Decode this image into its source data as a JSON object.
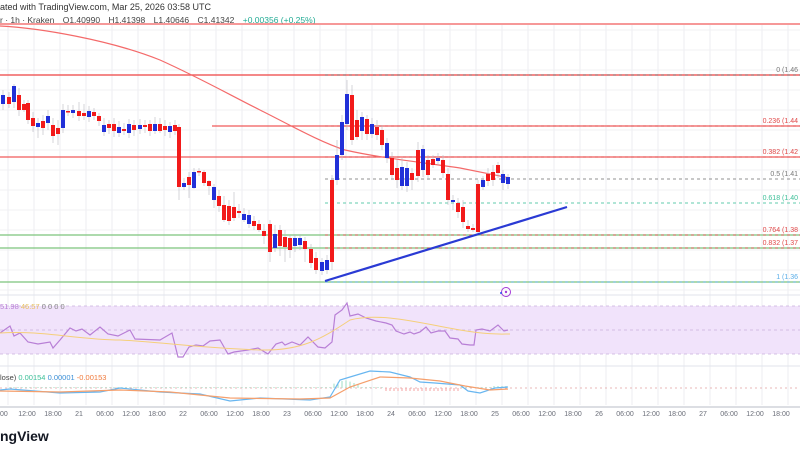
{
  "header": {
    "published": "ated with TradingView.com, Mar 25, 2026 03:58 UTC",
    "symbol": "r · 1h · Kraken",
    "open": "O1.40990",
    "high": "H1.41398",
    "low": "L1.40646",
    "close": "C1.41342",
    "change": "+0.00356 (+0.25%)",
    "ma_label": "1"
  },
  "colors": {
    "bull": "#2130d8",
    "bear": "#f21a1a",
    "ma": "#f46a6a",
    "hline_red": "#f05a5a",
    "hline_green": "#7cc47c",
    "trendline": "#2a3ad4",
    "rsi_line": "#b87fd6",
    "rsi_signal": "#f5cf7a",
    "rsi_band": "#f1e3fb",
    "macd_line": "#68b6f0",
    "macd_signal": "#f59f6c",
    "hist_up": "#9fdcc4",
    "hist_down": "#f5a0a0"
  },
  "fib_levels": [
    {
      "label": "0 (1.46",
      "y": 70,
      "color": "#777777"
    },
    {
      "label": "0.236 (1.44",
      "y": 119,
      "color": "#e04848"
    },
    {
      "label": "0.382 (1.42",
      "y": 149,
      "color": "#e04848"
    },
    {
      "label": "0.5 (1.41",
      "y": 174,
      "color": "#777777"
    },
    {
      "label": "0.618 (1.40",
      "y": 199,
      "color": "#3cbf98"
    },
    {
      "label": "0.764 (1.38",
      "y": 229,
      "color": "#e04848"
    },
    {
      "label": "0.832 (1.37",
      "y": 242,
      "color": "#e04848"
    },
    {
      "label": "1 (1.36",
      "y": 276,
      "color": "#5aaee8"
    }
  ],
  "rsi_legend": {
    "value": "51.98",
    "signal": "46.57",
    "extra": "0 0 0 0"
  },
  "macd_legend": {
    "name": "lose)",
    "hist": "0.00154",
    "macd": "0.00001",
    "signal": "-0.00153"
  },
  "x_axis": [
    "0:00",
    "12:00",
    "18:00",
    "21",
    "06:00",
    "12:00",
    "18:00",
    "22",
    "06:00",
    "12:00",
    "18:00",
    "23",
    "06:00",
    "12:00",
    "18:00",
    "24",
    "06:00",
    "12:00",
    "18:00",
    "25",
    "06:00",
    "12:00",
    "18:00",
    "26",
    "06:00",
    "12:00",
    "18:00",
    "27",
    "06:00",
    "12:00",
    "18:00"
  ],
  "footer": {
    "brand": "ngView"
  },
  "chart_data": {
    "type": "candlestick",
    "title": "1h · Kraken",
    "ohlc_last": {
      "open": 1.4099,
      "high": 1.41398,
      "low": 1.40646,
      "close": 1.41342,
      "change": 0.00356,
      "change_pct": 0.25
    },
    "fib_retracement": [
      {
        "level": 0,
        "price": 1.46
      },
      {
        "level": 0.236,
        "price": 1.44
      },
      {
        "level": 0.382,
        "price": 1.42
      },
      {
        "level": 0.5,
        "price": 1.41
      },
      {
        "level": 0.618,
        "price": 1.4
      },
      {
        "level": 0.764,
        "price": 1.38
      },
      {
        "level": 0.832,
        "price": 1.37
      },
      {
        "level": 1,
        "price": 1.36
      }
    ],
    "horizontal_lines": [
      {
        "color": "red",
        "price_approx": 1.475
      },
      {
        "color": "red",
        "price_approx": 1.46
      },
      {
        "color": "red",
        "price_approx": 1.44
      },
      {
        "color": "red",
        "price_approx": 1.425
      },
      {
        "color": "green",
        "price_approx": 1.385
      },
      {
        "color": "green",
        "price_approx": 1.375
      },
      {
        "color": "green",
        "price_approx": 1.36
      }
    ],
    "trendline": {
      "type": "bullish support",
      "from": "Mar 23 ~09:00 @1.36",
      "to": "Mar 25 ~12:00 @1.40"
    },
    "indicators": {
      "rsi": {
        "value": 51.98,
        "signal": 46.57
      },
      "macd": {
        "histogram": 0.00154,
        "macd": 1e-05,
        "signal": -0.00153
      }
    },
    "x_ticks": [
      "21",
      "22",
      "23",
      "24",
      "25",
      "26",
      "27"
    ],
    "xlabel": "",
    "ylabel": ""
  }
}
